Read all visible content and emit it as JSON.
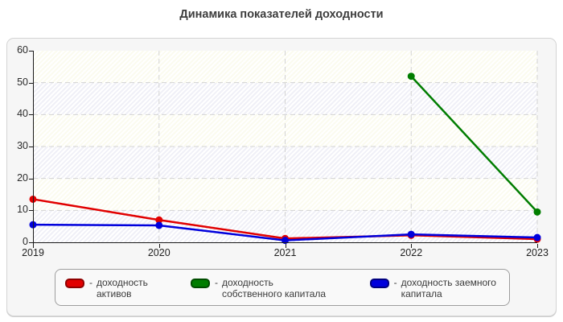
{
  "page": {
    "background": "#ffffff",
    "panel_background": "#f6f6f6"
  },
  "chart_data": {
    "type": "line",
    "title": "Динамика показателей доходности",
    "x_categories": [
      "2019",
      "2020",
      "2021",
      "2022",
      "2023"
    ],
    "yticks": [
      0,
      10,
      20,
      30,
      40,
      50,
      60
    ],
    "ylim": [
      0,
      60
    ],
    "grid": "dashed",
    "gridline_color": "#d3d3d3",
    "plot_band_colors": [
      "#fbfbef",
      "#f0f0f7"
    ],
    "legend_position": "bottom",
    "legend_dash": "-",
    "series": [
      {
        "name": "доходность активов",
        "color": "#e10000",
        "legend_border": "#8f0000",
        "values": [
          13.5,
          7,
          1.2,
          2.2,
          1
        ]
      },
      {
        "name": "доходность собственного капитала",
        "color": "#007d00",
        "legend_border": "#004d00",
        "values": [
          null,
          null,
          null,
          52,
          9.5
        ]
      },
      {
        "name": "доходность заемного капитала",
        "color": "#0000dc",
        "legend_border": "#000080",
        "values": [
          5.5,
          5.3,
          0.6,
          2.5,
          1.5
        ]
      }
    ]
  }
}
